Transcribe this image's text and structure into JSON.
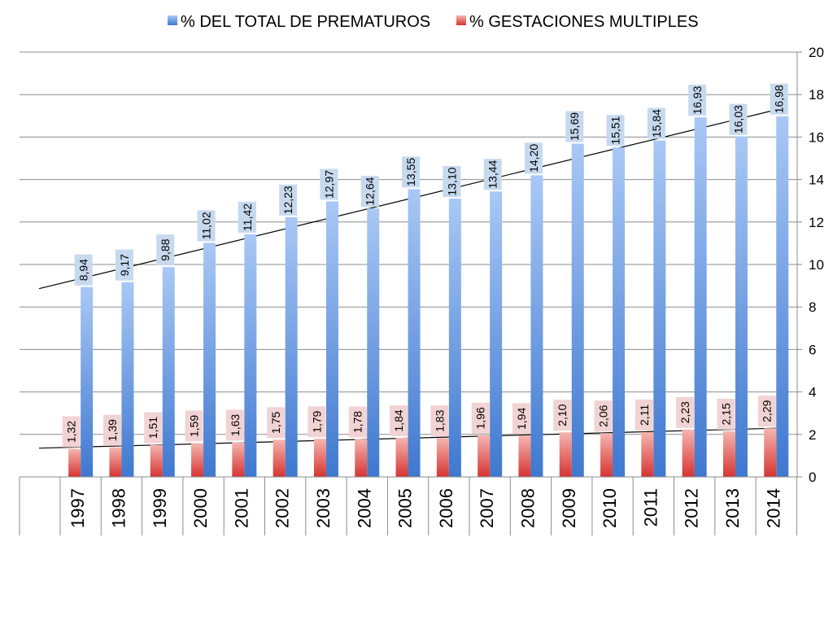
{
  "chart_data": {
    "type": "bar",
    "categories": [
      "1997",
      "1998",
      "1999",
      "2000",
      "2001",
      "2002",
      "2003",
      "2004",
      "2005",
      "2006",
      "2007",
      "2008",
      "2009",
      "2010",
      "2011",
      "2012",
      "2013",
      "2014"
    ],
    "series": [
      {
        "name": "% DEL TOTAL DE PREMATUROS",
        "color": "#4A7FD0",
        "label_bg": "#C6D9EE",
        "values": [
          8.94,
          9.17,
          9.88,
          11.02,
          11.42,
          12.23,
          12.97,
          12.64,
          13.55,
          13.1,
          13.44,
          14.2,
          15.69,
          15.51,
          15.84,
          16.93,
          16.03,
          16.98
        ],
        "labels": [
          "8,94",
          "9,17",
          "9,88",
          "11,02",
          "11,42",
          "12,23",
          "12,97",
          "12,64",
          "13,55",
          "13,10",
          "13,44",
          "14,20",
          "15,69",
          "15,51",
          "15,84",
          "16,93",
          "16,03",
          "16,98"
        ]
      },
      {
        "name": "% GESTACIONES MULTIPLES",
        "color": "#D93A3A",
        "label_bg": "#F2D3D3",
        "values": [
          1.32,
          1.39,
          1.51,
          1.59,
          1.63,
          1.75,
          1.79,
          1.78,
          1.84,
          1.83,
          1.96,
          1.94,
          2.1,
          2.06,
          2.11,
          2.23,
          2.15,
          2.29
        ],
        "labels": [
          "1,32",
          "1,39",
          "1,51",
          "1,59",
          "1,63",
          "1,75",
          "1,79",
          "1,78",
          "1,84",
          "1,83",
          "1,96",
          "1,94",
          "2,10",
          "2,06",
          "2,11",
          "2,23",
          "2,15",
          "2,29"
        ]
      }
    ],
    "yticks": [
      "0",
      "2",
      "4",
      "6",
      "8",
      "10",
      "12",
      "14",
      "16",
      "18",
      "20"
    ],
    "ylim": [
      0,
      20
    ],
    "y_axis_side": "right",
    "trendlines": true,
    "grid": true,
    "legend_position": "top"
  }
}
